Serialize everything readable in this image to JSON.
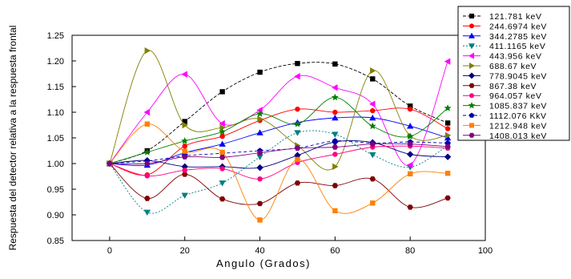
{
  "chart_data": {
    "type": "line",
    "xlabel": "Angulo (Grados)",
    "ylabel": "Respuesta del detector relativa a la respuesta frontal",
    "xlim": [
      -10,
      100
    ],
    "ylim": [
      0.85,
      1.25
    ],
    "xticks": [
      0,
      20,
      40,
      60,
      80,
      100
    ],
    "yticks": [
      0.85,
      0.9,
      0.95,
      1.0,
      1.05,
      1.1,
      1.15,
      1.2,
      1.25
    ],
    "ytick_labels": [
      "0.85",
      "0.90",
      "0.95",
      "1.00",
      "1.05",
      "1.10",
      "1.15",
      "1.20",
      "1.25"
    ],
    "grid": false,
    "legend_position": "top-right",
    "x": [
      0,
      10,
      20,
      30,
      40,
      50,
      60,
      70,
      80,
      90
    ],
    "series": [
      {
        "name": "121.781 keV",
        "color": "#000000",
        "marker": "square",
        "dash": "4,2",
        "values": [
          1.0,
          1.025,
          1.082,
          1.14,
          1.178,
          1.195,
          1.194,
          1.165,
          1.112,
          1.079
        ]
      },
      {
        "name": "244.6974 keV",
        "color": "#ff0000",
        "marker": "circle",
        "dash": "",
        "values": [
          1.0,
          0.978,
          1.034,
          1.053,
          1.084,
          1.106,
          1.1,
          1.103,
          1.106,
          1.068
        ]
      },
      {
        "name": "344.2785 keV",
        "color": "#0000ff",
        "marker": "triangle-up",
        "dash": "",
        "values": [
          1.0,
          0.997,
          1.021,
          1.038,
          1.06,
          1.08,
          1.089,
          1.089,
          1.073,
          1.05
        ]
      },
      {
        "name": "411.1165 keV",
        "color": "#008080",
        "marker": "triangle-down",
        "dash": "2,2",
        "values": [
          1.0,
          0.905,
          0.938,
          0.962,
          1.013,
          1.06,
          1.057,
          1.017,
          0.993,
          1.035
        ]
      },
      {
        "name": "443.956 keV",
        "color": "#ff00ff",
        "marker": "triangle-left",
        "dash": "",
        "values": [
          1.0,
          1.1,
          1.174,
          1.078,
          1.104,
          1.17,
          1.148,
          1.116,
          0.997,
          1.199
        ]
      },
      {
        "name": "688.67 keV",
        "color": "#808000",
        "marker": "triangle-right",
        "dash": "",
        "values": [
          1.0,
          1.22,
          1.075,
          1.07,
          1.087,
          1.035,
          0.994,
          1.181,
          1.054,
          1.055
        ]
      },
      {
        "name": "778.9045 keV",
        "color": "#000080",
        "marker": "diamond",
        "dash": "",
        "values": [
          1.0,
          1.006,
          0.994,
          0.994,
          0.992,
          1.016,
          1.042,
          1.041,
          1.018,
          1.013
        ]
      },
      {
        "name": "867.38 keV",
        "color": "#800000",
        "marker": "hexagon",
        "dash": "",
        "values": [
          1.0,
          0.932,
          0.979,
          0.931,
          0.922,
          0.962,
          0.957,
          0.97,
          0.915,
          0.933
        ]
      },
      {
        "name": "964.057 keV",
        "color": "#ff0080",
        "marker": "circle",
        "dash": "",
        "values": [
          1.0,
          0.976,
          0.987,
          0.99,
          0.97,
          1.002,
          1.018,
          1.032,
          1.034,
          1.03
        ]
      },
      {
        "name": "1085.837 keV",
        "color": "#008000",
        "marker": "star",
        "dash": "",
        "values": [
          1.0,
          1.022,
          1.044,
          1.062,
          1.097,
          1.077,
          1.129,
          1.073,
          1.053,
          1.108
        ]
      },
      {
        "name": "1112.076 KkV",
        "color": "#0000aa",
        "marker": "pentagon",
        "dash": "4,3",
        "values": [
          1.0,
          1.005,
          1.015,
          1.02,
          1.025,
          1.03,
          1.044,
          1.04,
          1.042,
          1.04
        ]
      },
      {
        "name": "1212.948 keV",
        "color": "#ff8000",
        "marker": "square",
        "dash": "",
        "values": [
          1.0,
          1.077,
          1.024,
          1.022,
          0.89,
          1.008,
          0.908,
          0.923,
          0.98,
          0.981
        ]
      },
      {
        "name": "1408.013 keV",
        "color": "#800080",
        "marker": "hexagon",
        "dash": "",
        "values": [
          1.0,
          1.0,
          1.013,
          1.012,
          1.021,
          1.03,
          1.032,
          1.038,
          1.038,
          1.033
        ]
      }
    ]
  }
}
